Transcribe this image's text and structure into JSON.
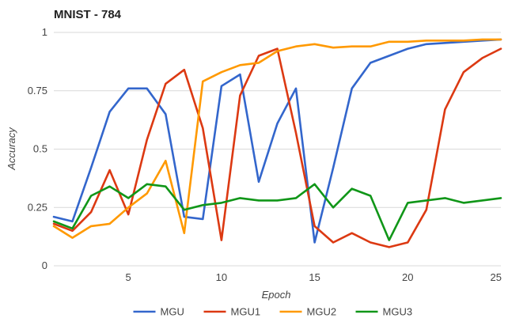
{
  "chart_data": {
    "type": "line",
    "title": "MNIST - 784",
    "xlabel": "Epoch",
    "ylabel": "Accuracy",
    "xlim": [
      1,
      25
    ],
    "ylim": [
      0,
      1
    ],
    "x": [
      1,
      2,
      3,
      4,
      5,
      6,
      7,
      8,
      9,
      10,
      11,
      12,
      13,
      14,
      15,
      16,
      17,
      18,
      19,
      20,
      21,
      22,
      23,
      24,
      25
    ],
    "x_ticks": [
      5,
      10,
      15,
      20,
      25
    ],
    "y_ticks": [
      0,
      0.25,
      0.5,
      0.75,
      1
    ],
    "y_tick_labels": [
      "0",
      "0.25",
      "0.5",
      "0.75",
      "1"
    ],
    "grid": "horizontal",
    "legend_position": "bottom",
    "series": [
      {
        "name": "MGU",
        "color": "#3366cc",
        "values": [
          0.21,
          0.19,
          0.42,
          0.66,
          0.76,
          0.76,
          0.65,
          0.21,
          0.2,
          0.77,
          0.82,
          0.36,
          0.61,
          0.76,
          0.1,
          0.42,
          0.76,
          0.87,
          0.9,
          0.93,
          0.95,
          0.955,
          0.96,
          0.965,
          0.97
        ]
      },
      {
        "name": "MGU1",
        "color": "#dc3912",
        "values": [
          0.18,
          0.15,
          0.23,
          0.41,
          0.22,
          0.54,
          0.78,
          0.84,
          0.59,
          0.11,
          0.73,
          0.9,
          0.93,
          0.57,
          0.17,
          0.1,
          0.14,
          0.1,
          0.08,
          0.1,
          0.24,
          0.67,
          0.83,
          0.89,
          0.93
        ]
      },
      {
        "name": "MGU2",
        "color": "#ff9900",
        "values": [
          0.17,
          0.12,
          0.17,
          0.18,
          0.25,
          0.31,
          0.45,
          0.14,
          0.79,
          0.83,
          0.86,
          0.87,
          0.92,
          0.94,
          0.95,
          0.935,
          0.94,
          0.94,
          0.96,
          0.96,
          0.965,
          0.965,
          0.965,
          0.97,
          0.97
        ]
      },
      {
        "name": "MGU3",
        "color": "#109618",
        "values": [
          0.19,
          0.16,
          0.3,
          0.34,
          0.29,
          0.35,
          0.34,
          0.24,
          0.26,
          0.27,
          0.29,
          0.28,
          0.28,
          0.29,
          0.35,
          0.25,
          0.33,
          0.3,
          0.11,
          0.27,
          0.28,
          0.29,
          0.27,
          0.28,
          0.29
        ]
      }
    ]
  }
}
